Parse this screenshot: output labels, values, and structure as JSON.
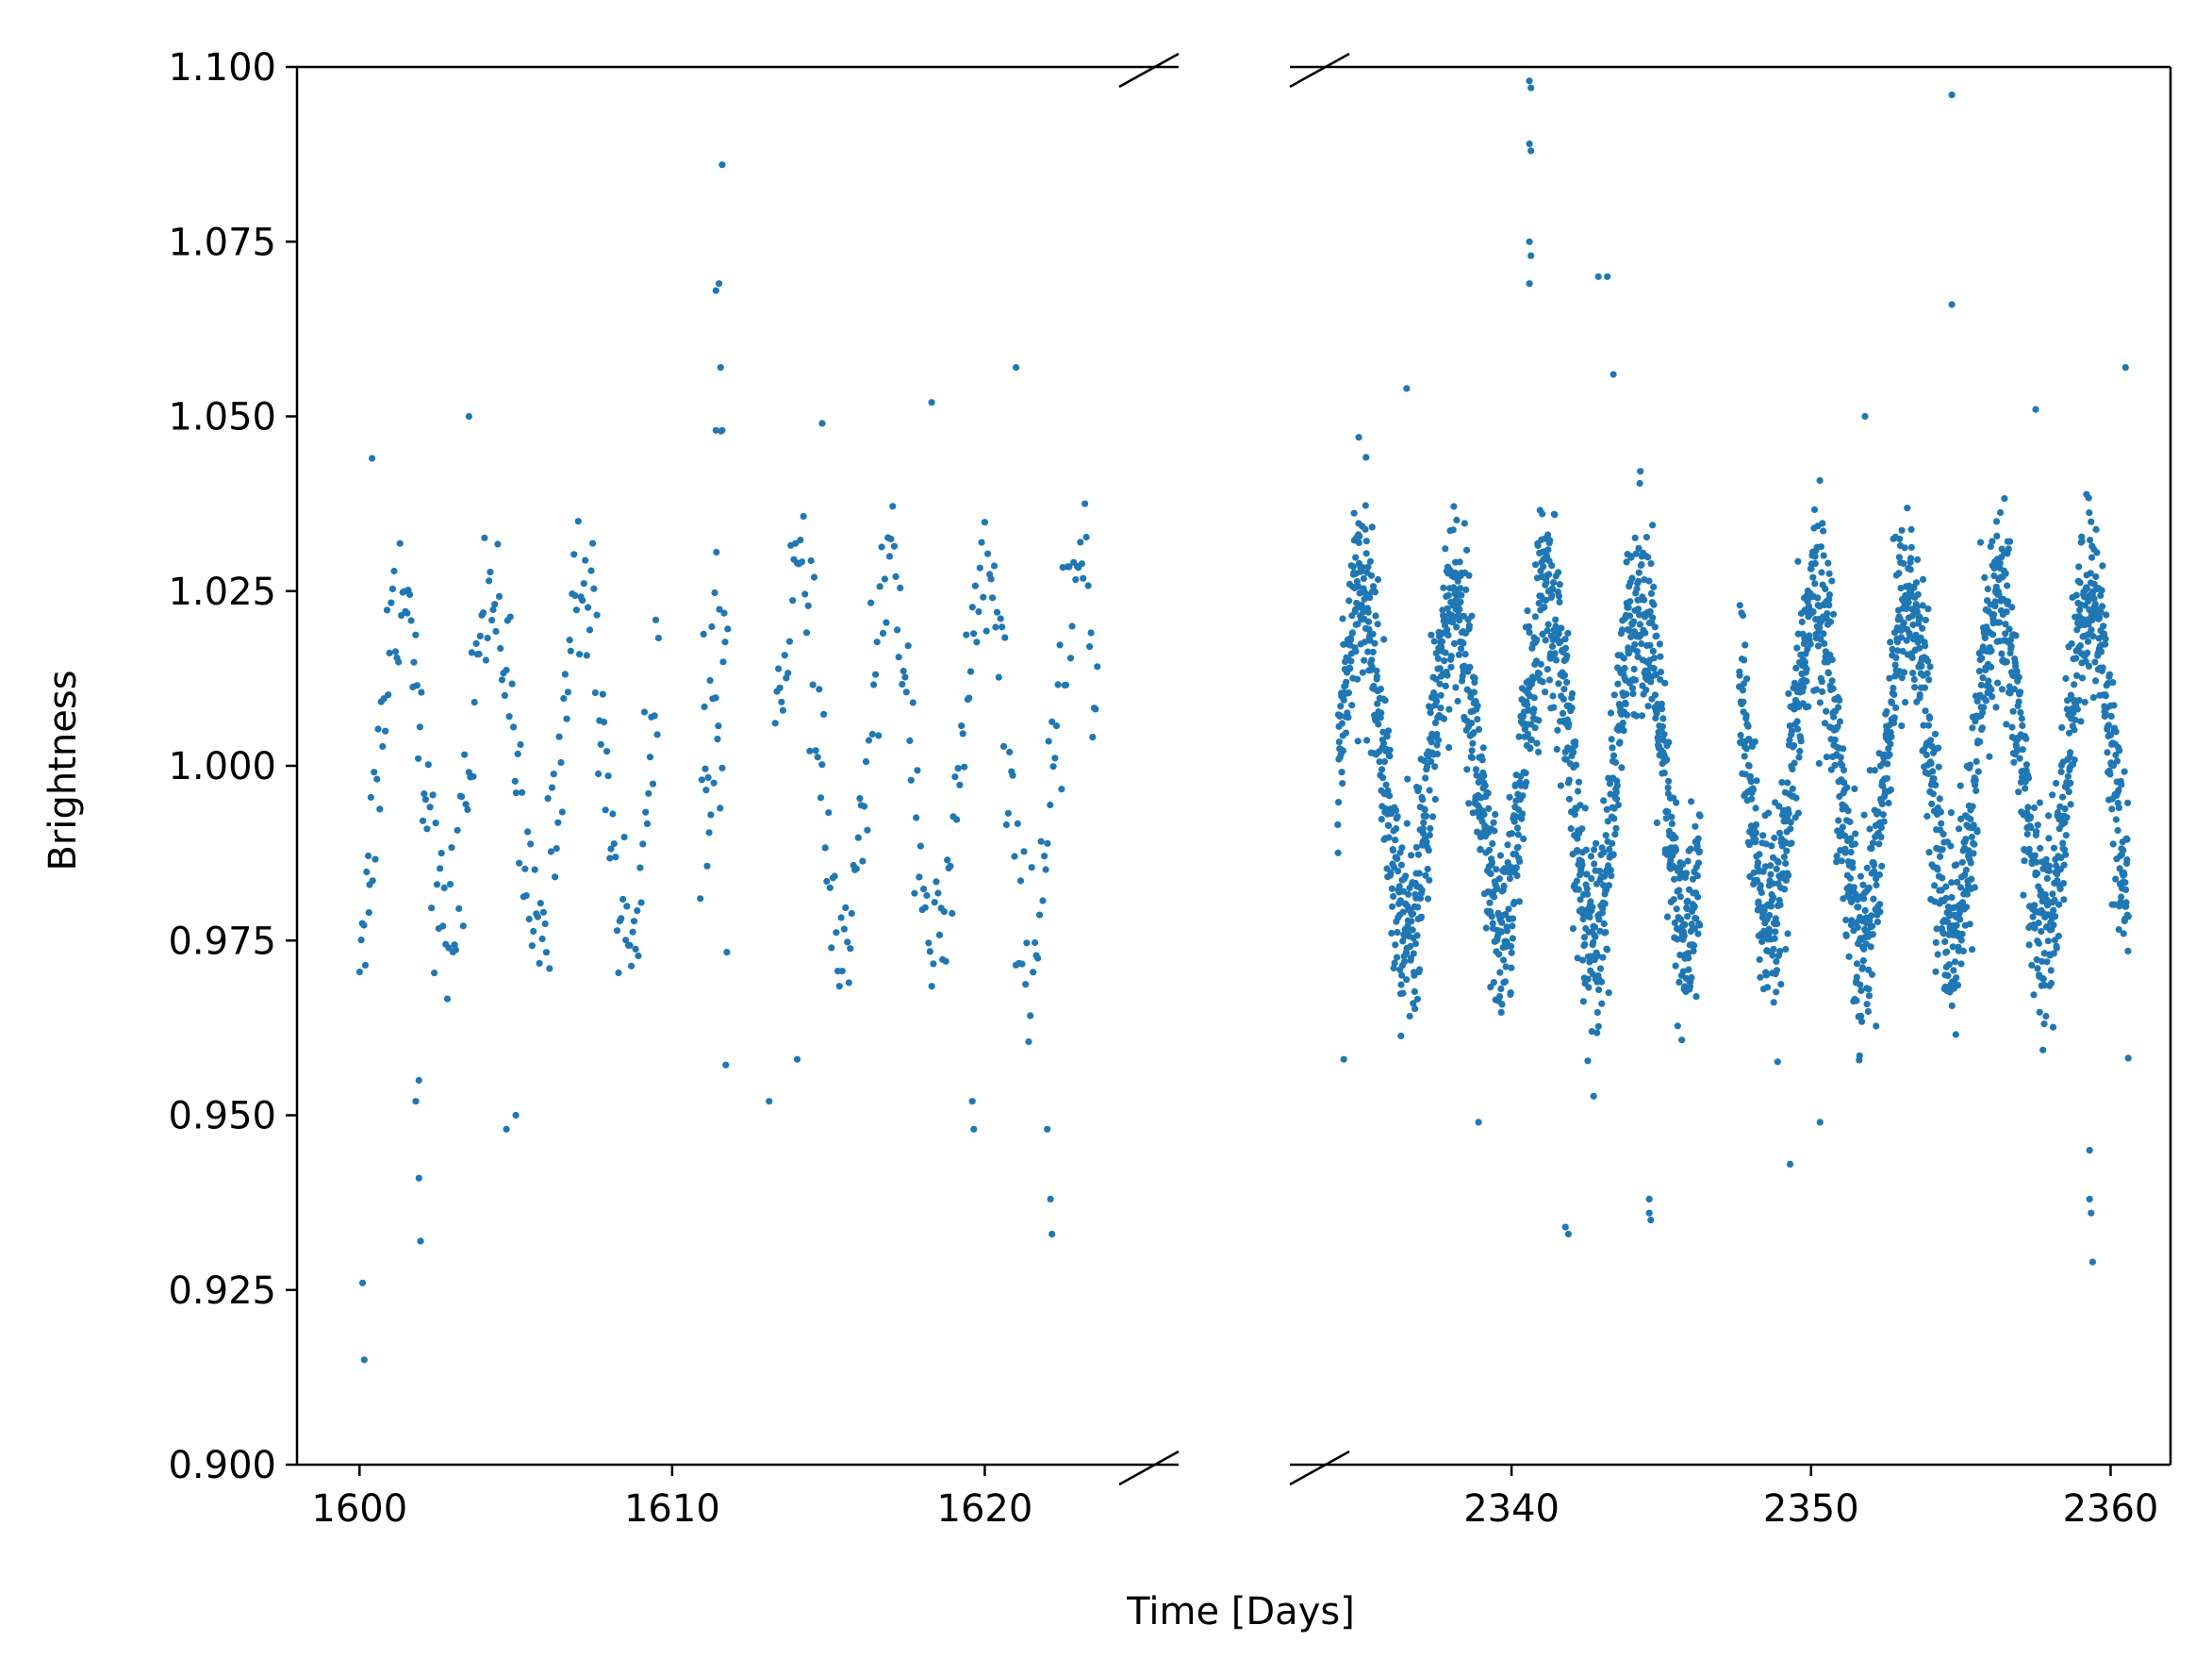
{
  "chart_data": {
    "type": "scatter",
    "title": "",
    "xlabel": "Time [Days]",
    "ylabel": "Brightness",
    "grid": false,
    "legend": "none",
    "broken_x_axis": true,
    "ylim": [
      0.9,
      1.1
    ],
    "yticks": [
      "0.900",
      "0.925",
      "0.950",
      "0.975",
      "1.000",
      "1.025",
      "1.050",
      "1.075",
      "1.100"
    ],
    "color": "#1f77b4",
    "panels": [
      {
        "xlim": [
          1598,
          1626.2
        ],
        "xticks": [
          "1600",
          "1610",
          "1620"
        ],
        "segments": [
          {
            "x_start": 1600.0,
            "x_end": 1609.6,
            "period": 2.9,
            "amplitude": 0.025,
            "phase": 0.4,
            "mean": 1.001,
            "noise": 0.006,
            "step": 0.046
          },
          {
            "x_start": 1611.0,
            "x_end": 1611.8,
            "period": 2.9,
            "amplitude": 0.012,
            "phase": 0.4,
            "mean": 1.02,
            "noise": 0.015,
            "step": 0.03
          },
          {
            "x_start": 1613.3,
            "x_end": 1623.6,
            "period": 3.0,
            "amplitude": 0.027,
            "phase": 1.6,
            "mean": 1.0,
            "noise": 0.006,
            "step": 0.05
          }
        ],
        "outliers": [
          {
            "x": 1600.1,
            "y": 0.926
          },
          {
            "x": 1600.15,
            "y": 0.915
          },
          {
            "x": 1600.4,
            "y": 1.044
          },
          {
            "x": 1600.3,
            "y": 0.979
          },
          {
            "x": 1601.9,
            "y": 0.941
          },
          {
            "x": 1601.95,
            "y": 0.932
          },
          {
            "x": 1601.9,
            "y": 0.955
          },
          {
            "x": 1601.8,
            "y": 0.952
          },
          {
            "x": 1603.5,
            "y": 1.05
          },
          {
            "x": 1604.7,
            "y": 0.948
          },
          {
            "x": 1605.0,
            "y": 0.95
          },
          {
            "x": 1611.6,
            "y": 1.086
          },
          {
            "x": 1611.5,
            "y": 1.069
          },
          {
            "x": 1611.4,
            "y": 1.068
          },
          {
            "x": 1611.55,
            "y": 1.057
          },
          {
            "x": 1611.4,
            "y": 1.048
          },
          {
            "x": 1611.6,
            "y": 1.048
          },
          {
            "x": 1610.9,
            "y": 0.981
          },
          {
            "x": 1610.95,
            "y": 0.998
          },
          {
            "x": 1614.0,
            "y": 0.958
          },
          {
            "x": 1613.1,
            "y": 0.952
          },
          {
            "x": 1619.6,
            "y": 0.952
          },
          {
            "x": 1619.65,
            "y": 0.948
          },
          {
            "x": 1622.1,
            "y": 0.938
          },
          {
            "x": 1622.15,
            "y": 0.933
          },
          {
            "x": 1622.0,
            "y": 0.948
          },
          {
            "x": 1621.0,
            "y": 1.057
          },
          {
            "x": 1618.3,
            "y": 1.052
          },
          {
            "x": 1614.8,
            "y": 1.049
          }
        ]
      },
      {
        "xlim": [
          2332.6,
          2362.0
        ],
        "xticks": [
          "2340",
          "2350",
          "2360"
        ],
        "segments": [
          {
            "x_start": 2334.2,
            "x_end": 2346.3,
            "period": 3.1,
            "amplitude": 0.024,
            "phase": 0.2,
            "mean": 1.0,
            "noise": 0.007,
            "step": 0.0085
          },
          {
            "x_start": 2347.6,
            "x_end": 2360.6,
            "period": 3.05,
            "amplitude": 0.024,
            "phase": 4.4,
            "mean": 1.0,
            "noise": 0.007,
            "step": 0.0085
          }
        ],
        "outliers": [
          {
            "x": 2340.6,
            "y": 1.098
          },
          {
            "x": 2340.65,
            "y": 1.097
          },
          {
            "x": 2340.6,
            "y": 1.089
          },
          {
            "x": 2340.65,
            "y": 1.088
          },
          {
            "x": 2340.6,
            "y": 1.075
          },
          {
            "x": 2340.65,
            "y": 1.073
          },
          {
            "x": 2340.6,
            "y": 1.069
          },
          {
            "x": 2342.9,
            "y": 1.07
          },
          {
            "x": 2343.2,
            "y": 1.07
          },
          {
            "x": 2343.4,
            "y": 1.056
          },
          {
            "x": 2354.7,
            "y": 1.096
          },
          {
            "x": 2354.7,
            "y": 1.066
          },
          {
            "x": 2341.8,
            "y": 0.934
          },
          {
            "x": 2341.9,
            "y": 0.933
          },
          {
            "x": 2344.6,
            "y": 0.936
          },
          {
            "x": 2344.65,
            "y": 0.935
          },
          {
            "x": 2344.6,
            "y": 0.938
          },
          {
            "x": 2359.4,
            "y": 0.929
          },
          {
            "x": 2359.3,
            "y": 0.938
          },
          {
            "x": 2359.35,
            "y": 0.936
          },
          {
            "x": 2359.3,
            "y": 0.945
          },
          {
            "x": 2349.3,
            "y": 0.943
          },
          {
            "x": 2350.3,
            "y": 0.949
          },
          {
            "x": 2338.9,
            "y": 0.949
          },
          {
            "x": 2334.4,
            "y": 0.958
          },
          {
            "x": 2360.5,
            "y": 1.057
          },
          {
            "x": 2336.5,
            "y": 1.054
          },
          {
            "x": 2351.8,
            "y": 1.05
          },
          {
            "x": 2357.5,
            "y": 1.051
          },
          {
            "x": 2334.9,
            "y": 1.047
          }
        ]
      }
    ]
  }
}
